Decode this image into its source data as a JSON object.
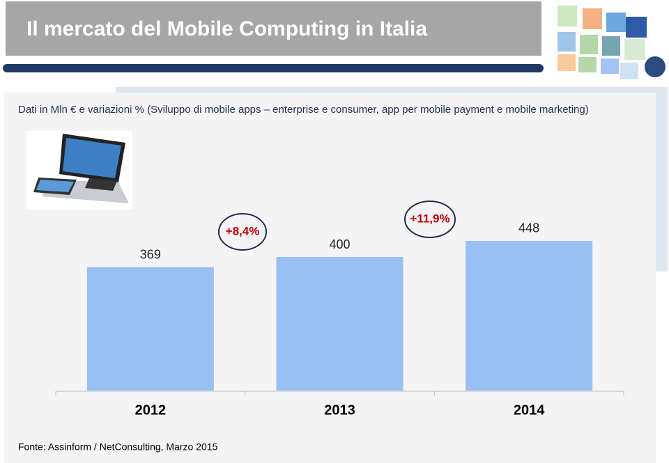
{
  "chart_data": {
    "type": "bar",
    "title": "Il mercato del Mobile Computing in Italia",
    "subtitle": "Dati in Mln € e variazioni % (Sviluppo di mobile apps – enterprise e consumer, app per mobile payment e mobile marketing)",
    "categories": [
      "2012",
      "2013",
      "2014"
    ],
    "values": [
      369,
      400,
      448
    ],
    "color": "#99c0f2",
    "annotations": [
      "+8,4%",
      "+11,9%"
    ],
    "source": "Fonte: Assinform / NetConsulting, Marzo 2015"
  }
}
